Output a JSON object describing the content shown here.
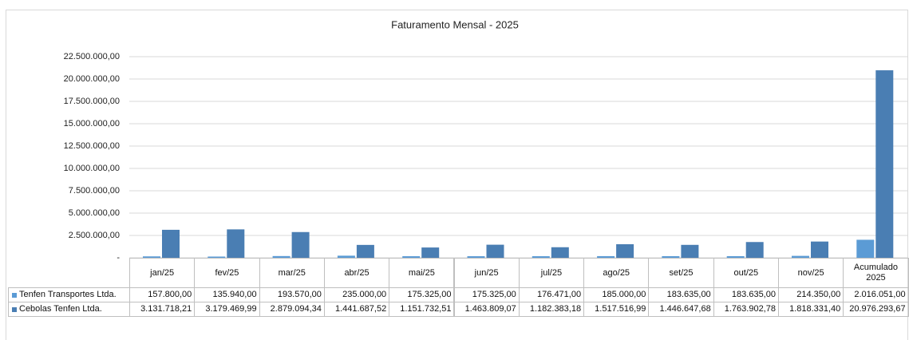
{
  "chart_data": {
    "type": "bar",
    "title": "Faturamento Mensal - 2025",
    "categories": [
      "jan/25",
      "fev/25",
      "mar/25",
      "abr/25",
      "mai/25",
      "jun/25",
      "jul/25",
      "ago/25",
      "set/25",
      "out/25",
      "nov/25",
      "Acumulado 2025"
    ],
    "series": [
      {
        "name": "Tenfen Transportes Ltda.",
        "color": "#5b9bd5",
        "values": [
          157800.0,
          135940.0,
          193570.0,
          235000.0,
          175325.0,
          175325.0,
          176471.0,
          185000.0,
          183635.0,
          183635.0,
          214350.0,
          2016051.0
        ],
        "value_labels": [
          "157.800,00",
          "135.940,00",
          "193.570,00",
          "235.000,00",
          "175.325,00",
          "175.325,00",
          "176.471,00",
          "185.000,00",
          "183.635,00",
          "183.635,00",
          "214.350,00",
          "2.016.051,00"
        ]
      },
      {
        "name": "Cebolas Tenfen Ltda.",
        "color": "#4a7eb3",
        "values": [
          3131718.21,
          3179469.99,
          2879094.34,
          1441687.52,
          1151732.51,
          1463809.07,
          1182383.18,
          1517516.99,
          1446647.68,
          1763902.78,
          1818331.4,
          20976293.67
        ],
        "value_labels": [
          "3.131.718,21",
          "3.179.469,99",
          "2.879.094,34",
          "1.441.687,52",
          "1.151.732,51",
          "1.463.809,07",
          "1.182.383,18",
          "1.517.516,99",
          "1.446.647,68",
          "1.763.902,78",
          "1.818.331,40",
          "20.976.293,67"
        ]
      }
    ],
    "ylim": [
      0,
      22500000
    ],
    "yticks": [
      {
        "value": 0,
        "label": "-"
      },
      {
        "value": 2500000,
        "label": "2.500.000,00"
      },
      {
        "value": 5000000,
        "label": "5.000.000,00"
      },
      {
        "value": 7500000,
        "label": "7.500.000,00"
      },
      {
        "value": 10000000,
        "label": "10.000.000,00"
      },
      {
        "value": 12500000,
        "label": "12.500.000,00"
      },
      {
        "value": 15000000,
        "label": "15.000.000,00"
      },
      {
        "value": 17500000,
        "label": "17.500.000,00"
      },
      {
        "value": 20000000,
        "label": "20.000.000,00"
      },
      {
        "value": 22500000,
        "label": "22.500.000,00"
      }
    ],
    "grid": true
  }
}
